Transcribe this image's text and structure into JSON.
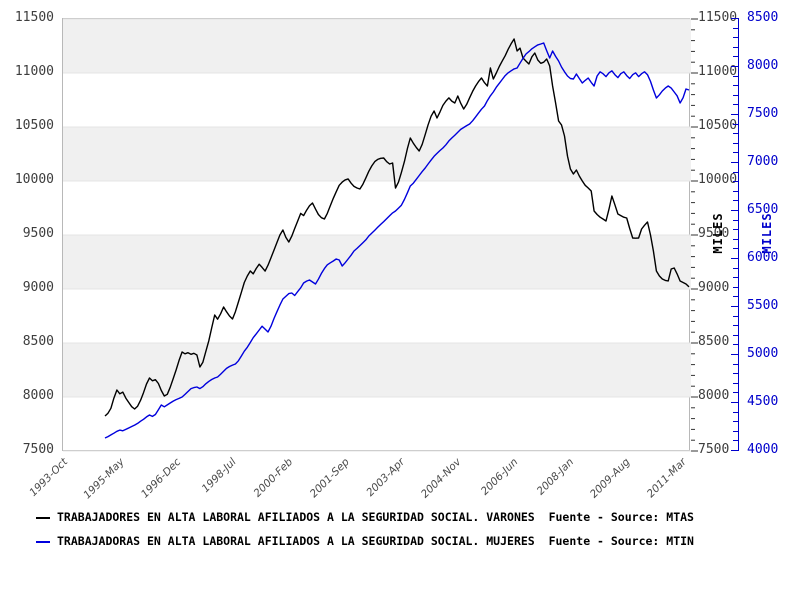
{
  "chart_data": {
    "type": "line",
    "title": "",
    "x_tick_labels": [
      "1993-Oct",
      "1995-May",
      "1996-Dec",
      "1998-Jul",
      "2000-Feb",
      "2001-Sep",
      "2003-Apr",
      "2004-Nov",
      "2006-Jun",
      "2008-Jan",
      "2009-Aug",
      "2011-Mar"
    ],
    "left_axis": {
      "label": "MILES",
      "min": 7500,
      "max": 11500,
      "tick_step": 500,
      "minor_step": 100,
      "color": "#000000",
      "shown_on": "both-sides"
    },
    "right_axis": {
      "label": "MILES",
      "min": 4000,
      "max": 8500,
      "tick_step": 500,
      "minor_step": 100,
      "color": "#0000cc"
    },
    "grid": "alternating-gray-bands",
    "legend_position": "bottom-left",
    "series": [
      {
        "name": "TRABAJADORES EN ALTA LABORAL AFILIADOS A LA SEGURIDAD SOCIAL. VARONES  Fuente - Source: MTAS",
        "axis": "left",
        "color": "#000000",
        "values": [
          7824,
          7850,
          7895,
          7990,
          8065,
          8030,
          8045,
          7990,
          7950,
          7910,
          7889,
          7915,
          7970,
          8040,
          8120,
          8176,
          8150,
          8160,
          8125,
          8060,
          8009,
          8025,
          8090,
          8170,
          8250,
          8340,
          8417,
          8400,
          8410,
          8395,
          8405,
          8389,
          8278,
          8320,
          8420,
          8520,
          8640,
          8759,
          8720,
          8770,
          8833,
          8790,
          8750,
          8722,
          8790,
          8880,
          8970,
          9060,
          9120,
          9167,
          9140,
          9190,
          9230,
          9200,
          9166,
          9220,
          9290,
          9360,
          9430,
          9500,
          9546,
          9480,
          9435,
          9490,
          9560,
          9630,
          9700,
          9680,
          9730,
          9770,
          9796,
          9740,
          9690,
          9660,
          9648,
          9700,
          9770,
          9840,
          9900,
          9960,
          9990,
          10010,
          10019,
          9980,
          9950,
          9935,
          9926,
          9970,
          10030,
          10090,
          10140,
          10180,
          10200,
          10210,
          10213,
          10180,
          10157,
          10167,
          9935,
          9990,
          10080,
          10180,
          10300,
          10398,
          10350,
          10310,
          10278,
          10340,
          10430,
          10520,
          10600,
          10648,
          10583,
          10640,
          10700,
          10740,
          10769,
          10740,
          10722,
          10787,
          10720,
          10667,
          10710,
          10770,
          10830,
          10880,
          10920,
          10954,
          10910,
          10880,
          11046,
          10944,
          11000,
          11060,
          11110,
          11160,
          11220,
          11270,
          11315,
          11204,
          11231,
          11139,
          11110,
          11083,
          11150,
          11185,
          11120,
          11090,
          11100,
          11130,
          11065,
          10880,
          10722,
          10556,
          10519,
          10417,
          10231,
          10111,
          10065,
          10102,
          10046,
          10000,
          9960,
          9935,
          9907,
          9722,
          9690,
          9665,
          9648,
          9630,
          9740,
          9861,
          9780,
          9694,
          9680,
          9665,
          9657,
          9560,
          9472,
          9470,
          9472,
          9556,
          9590,
          9620,
          9500,
          9352,
          9167,
          9120,
          9093,
          9080,
          9074,
          9185,
          9194,
          9140,
          9074,
          9060,
          9046,
          9019
        ]
      },
      {
        "name": "TRABAJADORAS EN ALTA LABORAL AFILIADOS A LA SEGURIDAD SOCIAL. MUJERES  Fuente - Source: MTIN",
        "axis": "right",
        "color": "#0000dd",
        "values": [
          4135,
          4150,
          4168,
          4185,
          4205,
          4218,
          4210,
          4225,
          4240,
          4255,
          4270,
          4288,
          4310,
          4330,
          4355,
          4375,
          4360,
          4380,
          4430,
          4479,
          4460,
          4480,
          4500,
          4520,
          4535,
          4548,
          4562,
          4590,
          4620,
          4650,
          4660,
          4667,
          4650,
          4670,
          4700,
          4725,
          4745,
          4760,
          4771,
          4800,
          4830,
          4860,
          4880,
          4895,
          4906,
          4940,
          4990,
          5040,
          5080,
          5130,
          5180,
          5220,
          5260,
          5300,
          5270,
          5240,
          5300,
          5380,
          5450,
          5520,
          5583,
          5610,
          5640,
          5646,
          5620,
          5660,
          5700,
          5750,
          5770,
          5781,
          5760,
          5740,
          5790,
          5850,
          5900,
          5940,
          5960,
          5979,
          6000,
          5990,
          5927,
          5960,
          6000,
          6040,
          6083,
          6110,
          6140,
          6170,
          6200,
          6240,
          6270,
          6300,
          6330,
          6360,
          6390,
          6420,
          6450,
          6480,
          6500,
          6530,
          6560,
          6620,
          6690,
          6760,
          6790,
          6830,
          6870,
          6910,
          6948,
          6990,
          7030,
          7070,
          7100,
          7130,
          7156,
          7190,
          7230,
          7260,
          7290,
          7320,
          7350,
          7370,
          7390,
          7406,
          7440,
          7480,
          7520,
          7560,
          7594,
          7650,
          7700,
          7740,
          7790,
          7830,
          7870,
          7910,
          7940,
          7960,
          7980,
          7990,
          8040,
          8090,
          8135,
          8160,
          8190,
          8210,
          8230,
          8240,
          8250,
          8170,
          8094,
          8167,
          8110,
          8063,
          8000,
          7950,
          7906,
          7880,
          7875,
          7927,
          7880,
          7833,
          7860,
          7885,
          7840,
          7802,
          7906,
          7950,
          7930,
          7900,
          7940,
          7960,
          7920,
          7890,
          7930,
          7950,
          7910,
          7880,
          7920,
          7940,
          7900,
          7930,
          7950,
          7920,
          7850,
          7760,
          7677,
          7710,
          7750,
          7780,
          7802,
          7780,
          7740,
          7700,
          7625,
          7680,
          7771,
          7760
        ]
      }
    ]
  },
  "legend": {
    "items": [
      {
        "label": "TRABAJADORES EN ALTA LABORAL AFILIADOS A LA SEGURIDAD SOCIAL. VARONES  Fuente - Source: MTAS",
        "color": "#000000"
      },
      {
        "label": "TRABAJADORAS EN ALTA LABORAL AFILIADOS A LA SEGURIDAD SOCIAL. MUJERES  Fuente - Source: MTIN",
        "color": "#0000dd"
      }
    ]
  },
  "colors": {
    "band_gray": "#f0f0f0",
    "grid_line": "#e4e4e4",
    "plot_border": "#b8b8b8",
    "tick_text": "#3d3d3d",
    "blue_axis": "#0000cc"
  }
}
